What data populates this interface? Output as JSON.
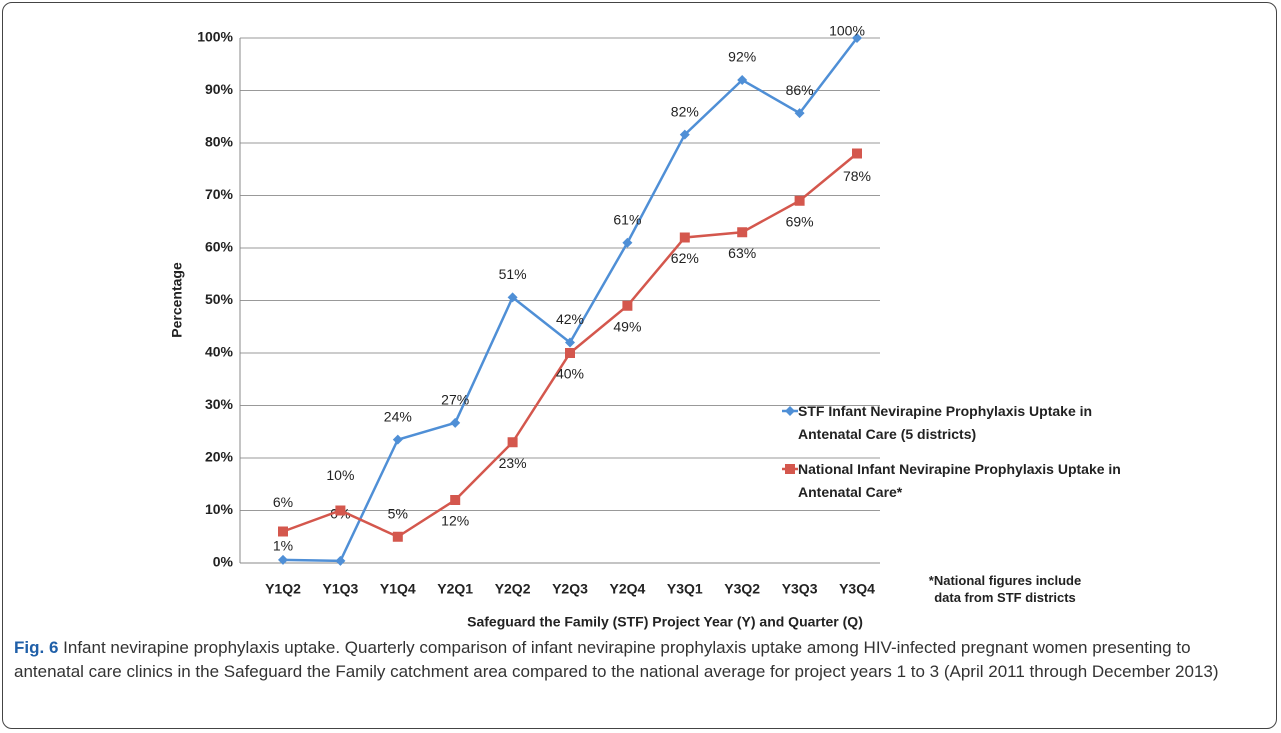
{
  "chart_data": {
    "type": "line",
    "categories": [
      "Y1Q2",
      "Y1Q3",
      "Y1Q4",
      "Y2Q1",
      "Y2Q2",
      "Y2Q3",
      "Y2Q4",
      "Y3Q1",
      "Y3Q2",
      "Y3Q3",
      "Y3Q4"
    ],
    "series": [
      {
        "name": "STF Infant Nevirapine Prophylaxis Uptake in Antenatal Care (5 districts)",
        "color": "#4f8fd6",
        "marker": "diamond",
        "values": [
          0.6,
          0.4,
          23.5,
          26.7,
          50.6,
          42,
          61,
          81.6,
          92,
          85.7,
          100
        ],
        "value_labels": [
          "1%",
          "0%",
          "24%",
          "27%",
          "51%",
          "42%",
          "61%",
          "82%",
          "92%",
          "86%",
          "100%"
        ]
      },
      {
        "name": "National Infant Nevirapine Prophylaxis Uptake in Antenatal Care*",
        "color": "#d4574d",
        "marker": "square",
        "values": [
          6,
          10,
          5,
          12,
          23,
          40,
          49,
          62,
          63,
          69,
          78
        ],
        "value_labels": [
          "6%",
          "10%",
          "5%",
          "12%",
          "23%",
          "40%",
          "49%",
          "62%",
          "63%",
          "69%",
          "78%"
        ]
      }
    ],
    "ylim": [
      0,
      100
    ],
    "yticks": [
      {
        "value": 0,
        "label": "0%"
      },
      {
        "value": 10,
        "label": "10%"
      },
      {
        "value": 20,
        "label": "20%"
      },
      {
        "value": 30,
        "label": "30%"
      },
      {
        "value": 40,
        "label": "40%"
      },
      {
        "value": 50,
        "label": "50%"
      },
      {
        "value": 60,
        "label": "60%"
      },
      {
        "value": 70,
        "label": "70%"
      },
      {
        "value": 80,
        "label": "80%"
      },
      {
        "value": 90,
        "label": "90%"
      },
      {
        "value": 100,
        "label": "100%"
      }
    ],
    "grid": true,
    "xlabel": "Safeguard the Family (STF) Project Year (Y) and Quarter (Q)",
    "ylabel": "Percentage",
    "footnote": "*National figures include data from STF districts",
    "caption_label": "Fig. 6",
    "caption": "Infant nevirapine prophylaxis uptake. Quarterly comparison of infant nevirapine prophylaxis uptake among HIV-infected pregnant women presenting to antenatal care clinics in the Safeguard the Family catchment area compared to the national average for project years 1 to 3 (April 2011 through December 2013)"
  }
}
